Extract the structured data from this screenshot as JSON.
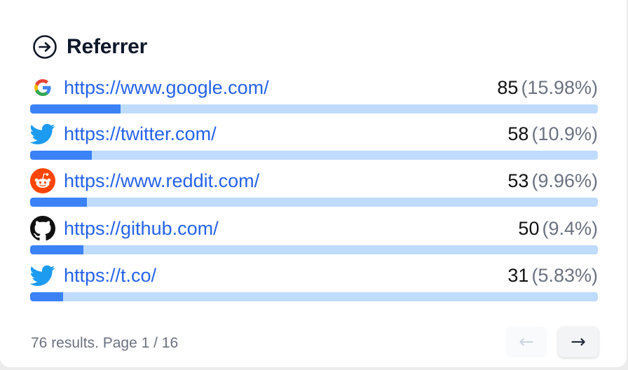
{
  "widget": {
    "title": "Referrer",
    "title_icon": "arrow-right-circle-icon"
  },
  "referrers": [
    {
      "icon": "google-icon",
      "url": "https://www.google.com/",
      "count": "85",
      "percent": "(15.98%)",
      "share": 0.1598
    },
    {
      "icon": "twitter-icon",
      "url": "https://twitter.com/",
      "count": "58",
      "percent": "(10.9%)",
      "share": 0.109
    },
    {
      "icon": "reddit-icon",
      "url": "https://www.reddit.com/",
      "count": "53",
      "percent": "(9.96%)",
      "share": 0.0996
    },
    {
      "icon": "github-icon",
      "url": "https://github.com/",
      "count": "50",
      "percent": "(9.4%)",
      "share": 0.094
    },
    {
      "icon": "twitter-icon",
      "url": "https://t.co/",
      "count": "31",
      "percent": "(5.83%)",
      "share": 0.0583
    }
  ],
  "footer": {
    "results_text": "76 results. Page 1 / 16",
    "prev_label": "←",
    "next_label": "→",
    "prev_enabled": false,
    "next_enabled": true
  },
  "colors": {
    "link": "#2563eb",
    "bar_fill": "#3b82f6",
    "bar_track": "#bfdbfe",
    "twitter": "#1d9bf0",
    "reddit": "#ff4500"
  }
}
